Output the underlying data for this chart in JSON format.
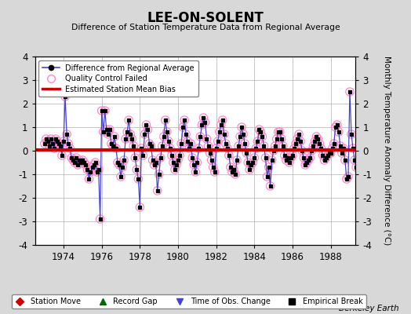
{
  "title": "LEE-ON-SOLENT",
  "subtitle": "Difference of Station Temperature Data from Regional Average",
  "ylabel": "Monthly Temperature Anomaly Difference (°C)",
  "ylim": [
    -4,
    4
  ],
  "xlim": [
    1972.5,
    1989.3
  ],
  "bias": 0.05,
  "xticks": [
    1974,
    1976,
    1978,
    1980,
    1982,
    1984,
    1986,
    1988
  ],
  "yticks": [
    -4,
    -3,
    -2,
    -1,
    0,
    1,
    2,
    3,
    4
  ],
  "bg_color": "#d8d8d8",
  "plot_bg_color": "#ffffff",
  "grid_color": "#bbbbbb",
  "line_color": "#4444cc",
  "qc_color": "#ff88cc",
  "bias_color": "#cc0000",
  "watermark": "Berkeley Earth",
  "monthly_data": [
    0.3,
    0.5,
    0.4,
    0.2,
    0.5,
    0.3,
    0.1,
    0.5,
    0.4,
    0.3,
    0.2,
    -0.2,
    0.4,
    2.3,
    0.7,
    0.3,
    0.1,
    -0.3,
    -0.4,
    -0.5,
    -0.3,
    -0.6,
    -0.4,
    -0.5,
    -0.4,
    -0.5,
    -0.6,
    -0.8,
    -1.2,
    -0.9,
    -0.7,
    -0.6,
    -0.5,
    -0.9,
    -0.8,
    -2.9,
    1.7,
    0.8,
    1.7,
    0.9,
    0.7,
    0.9,
    0.3,
    0.2,
    0.6,
    0.1,
    -0.5,
    -0.6,
    -1.1,
    -0.7,
    -0.4,
    0.5,
    0.8,
    1.3,
    0.7,
    0.5,
    0.2,
    -0.3,
    -0.8,
    -1.2,
    -2.4,
    0.1,
    -0.2,
    0.7,
    1.1,
    0.9,
    0.3,
    0.2,
    -0.4,
    -0.6,
    -0.5,
    -1.7,
    -1.0,
    -0.3,
    0.2,
    0.6,
    1.3,
    0.8,
    0.4,
    0.1,
    -0.2,
    -0.5,
    -0.8,
    -0.6,
    -0.4,
    -0.2,
    0.3,
    1.0,
    1.3,
    0.7,
    0.4,
    0.1,
    0.3,
    -0.3,
    -0.6,
    -0.9,
    -0.5,
    0.1,
    0.6,
    1.1,
    1.4,
    1.2,
    0.5,
    0.2,
    -0.1,
    -0.4,
    -0.7,
    -0.9,
    0.1,
    0.4,
    0.8,
    1.1,
    1.3,
    0.7,
    0.3,
    0.1,
    -0.2,
    -0.7,
    -0.9,
    -0.8,
    -1.0,
    -0.4,
    0.2,
    0.6,
    1.0,
    0.7,
    0.3,
    -0.1,
    -0.5,
    -0.8,
    -0.6,
    -0.5,
    -0.3,
    0.1,
    0.4,
    0.9,
    0.8,
    0.6,
    0.2,
    -0.3,
    -1.1,
    -0.7,
    -1.5,
    -0.4,
    0.0,
    0.2,
    0.5,
    0.8,
    0.8,
    0.5,
    0.2,
    -0.2,
    -0.4,
    -0.3,
    -0.5,
    -0.3,
    -0.2,
    0.1,
    0.3,
    0.5,
    0.7,
    0.4,
    0.0,
    -0.3,
    -0.6,
    -0.5,
    -0.4,
    -0.3,
    0.0,
    0.2,
    0.4,
    0.6,
    0.5,
    0.3,
    0.1,
    -0.2,
    -0.4,
    -0.3,
    -0.2,
    -0.1,
    -0.1,
    0.1,
    0.3,
    1.0,
    1.1,
    0.8,
    0.2,
    -0.1,
    0.1,
    -0.4,
    -1.2,
    -1.1,
    2.5,
    0.7,
    0.1,
    -0.4,
    -0.7
  ],
  "start_year": 1973,
  "start_month": 1
}
